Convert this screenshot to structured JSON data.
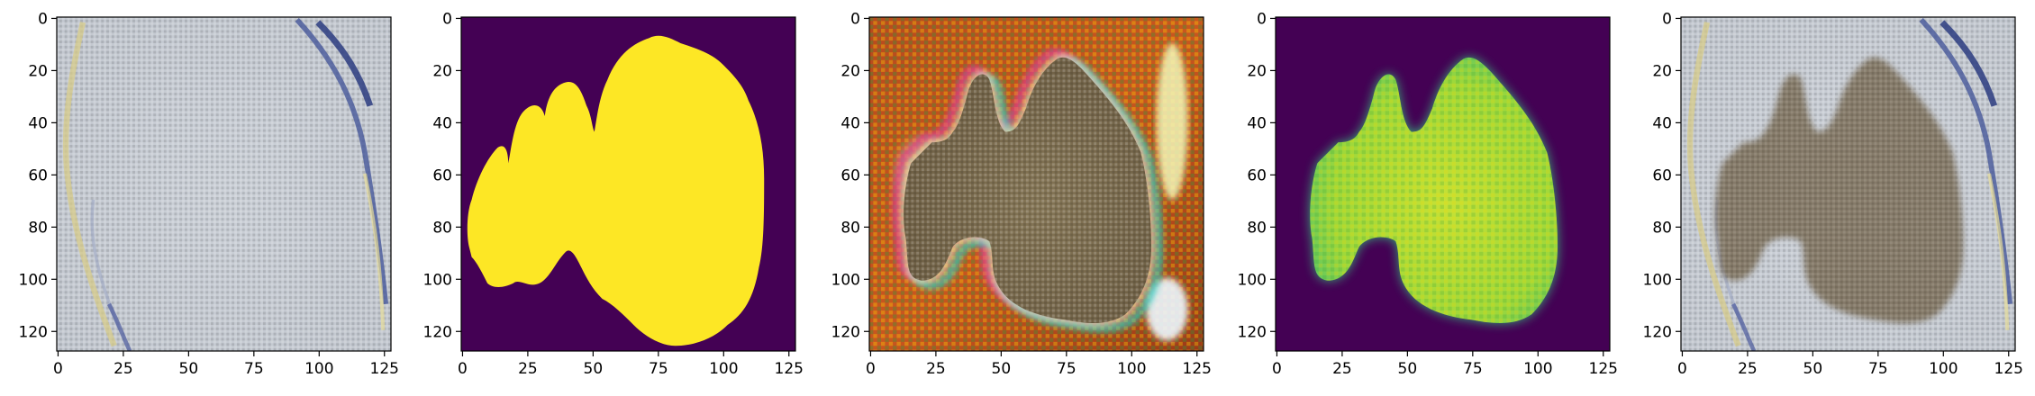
{
  "figure": {
    "panels": [
      {
        "id": "input-image",
        "kind": "photo",
        "description_name": "input-image"
      },
      {
        "id": "ground-truth-mask",
        "kind": "mask"
      },
      {
        "id": "reconstruction",
        "kind": "recon"
      },
      {
        "id": "predicted-mask",
        "kind": "pred"
      },
      {
        "id": "overlay",
        "kind": "overlay"
      }
    ],
    "axes": {
      "x_ticks": [
        "0",
        "25",
        "50",
        "75",
        "100",
        "125"
      ],
      "y_ticks": [
        "0",
        "20",
        "40",
        "60",
        "80",
        "100",
        "120"
      ],
      "x_values": [
        0,
        25,
        50,
        75,
        100,
        125
      ],
      "y_values": [
        0,
        20,
        40,
        60,
        80,
        100,
        120
      ],
      "range": [
        0,
        128
      ]
    },
    "colors": {
      "background_gray": "#c7ccd3",
      "mask_background": "#440154",
      "mask_foreground": "#fde725",
      "pred_foreground": "#b6de2b",
      "pred_edge": "#35b779",
      "blob_brown": "#7a6b50",
      "recon_orange": "#c2431a"
    }
  }
}
